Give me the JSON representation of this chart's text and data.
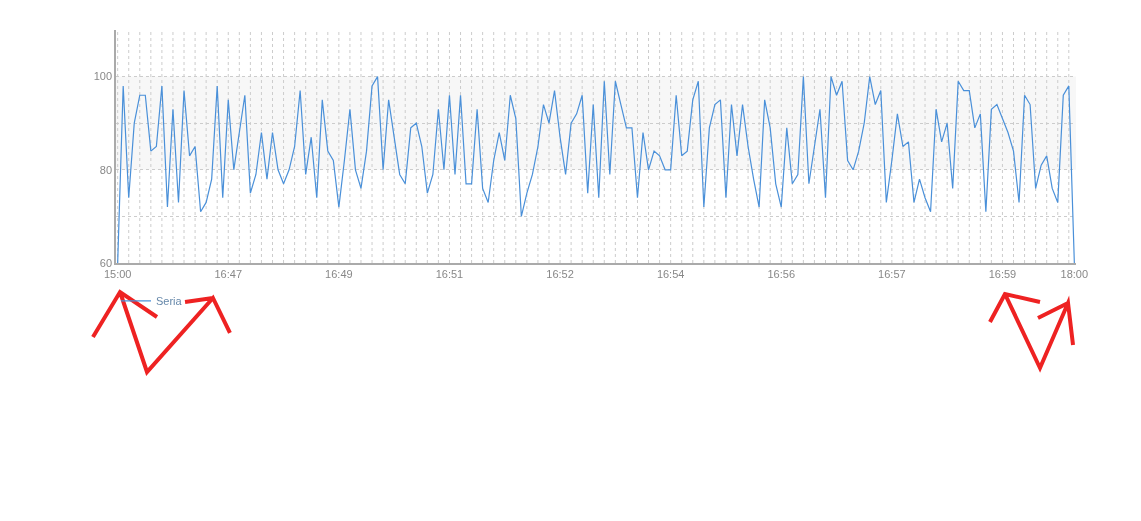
{
  "chart_data": {
    "type": "line",
    "categories": [
      "15:00",
      null,
      null,
      null,
      null,
      null,
      null,
      null,
      null,
      null,
      null,
      null,
      null,
      null,
      null,
      null,
      null,
      null,
      null,
      null,
      "16:47",
      null,
      null,
      null,
      null,
      null,
      null,
      null,
      null,
      null,
      null,
      null,
      null,
      null,
      null,
      null,
      null,
      null,
      null,
      null,
      "16:49",
      null,
      null,
      null,
      null,
      null,
      null,
      null,
      null,
      null,
      null,
      null,
      null,
      null,
      null,
      null,
      null,
      null,
      null,
      null,
      "16:51",
      null,
      null,
      null,
      null,
      null,
      null,
      null,
      null,
      null,
      null,
      null,
      null,
      null,
      null,
      null,
      null,
      null,
      null,
      null,
      "16:52",
      null,
      null,
      null,
      null,
      null,
      null,
      null,
      null,
      null,
      null,
      null,
      null,
      null,
      null,
      null,
      null,
      null,
      null,
      null,
      "16:54",
      null,
      null,
      null,
      null,
      null,
      null,
      null,
      null,
      null,
      null,
      null,
      null,
      null,
      null,
      null,
      null,
      null,
      null,
      null,
      "16:56",
      null,
      null,
      null,
      null,
      null,
      null,
      null,
      null,
      null,
      null,
      null,
      null,
      null,
      null,
      null,
      null,
      null,
      null,
      null,
      "16:57",
      null,
      null,
      null,
      null,
      null,
      null,
      null,
      null,
      null,
      null,
      null,
      null,
      null,
      null,
      null,
      null,
      null,
      null,
      null,
      "16:59",
      null,
      null,
      null,
      null,
      null,
      null,
      null,
      null,
      null,
      null,
      null,
      null,
      "18:00"
    ],
    "series": [
      {
        "name": "Seria",
        "color": "#4a90d9",
        "values": [
          60,
          98,
          74,
          90,
          96,
          96,
          84,
          85,
          98,
          72,
          93,
          73,
          97,
          83,
          85,
          71,
          73,
          78,
          98,
          74,
          95,
          80,
          88,
          96,
          75,
          79,
          88,
          78,
          88,
          80,
          77,
          80,
          85,
          97,
          79,
          87,
          74,
          95,
          84,
          82,
          72,
          82,
          93,
          80,
          76,
          84,
          98,
          100,
          80,
          95,
          87,
          79,
          77,
          89,
          90,
          85,
          75,
          79,
          93,
          80,
          96,
          79,
          96,
          77,
          77,
          93,
          76,
          73,
          82,
          88,
          82,
          96,
          91,
          70,
          75,
          79,
          85,
          94,
          90,
          97,
          87,
          79,
          90,
          92,
          96,
          75,
          94,
          74,
          99,
          79,
          99,
          94,
          89,
          89,
          74,
          88,
          80,
          84,
          83,
          80,
          80,
          96,
          83,
          84,
          95,
          99,
          72,
          89,
          94,
          95,
          74,
          94,
          83,
          94,
          85,
          78,
          72,
          95,
          89,
          77,
          72,
          89,
          77,
          79,
          100,
          77,
          85,
          93,
          74,
          100,
          96,
          99,
          82,
          80,
          84,
          90,
          100,
          94,
          97,
          73,
          82,
          92,
          85,
          86,
          73,
          78,
          74,
          71,
          93,
          86,
          90,
          76,
          99,
          97,
          97,
          89,
          92,
          71,
          93,
          94,
          91,
          88,
          84,
          73,
          96,
          94,
          76,
          81,
          83,
          76,
          73,
          96,
          98,
          60
        ]
      }
    ],
    "ylim": [
      60,
      110
    ],
    "yticks": [
      60,
      {
        "value": 70,
        "label": null
      },
      80,
      {
        "value": 90,
        "label": null
      },
      100
    ],
    "bands": [
      {
        "axis": "y",
        "from": 80,
        "to": 100,
        "color": "#f7f7f7"
      }
    ],
    "grid": true,
    "legend": "bottom left",
    "marker": "none",
    "line_style": "solid"
  }
}
